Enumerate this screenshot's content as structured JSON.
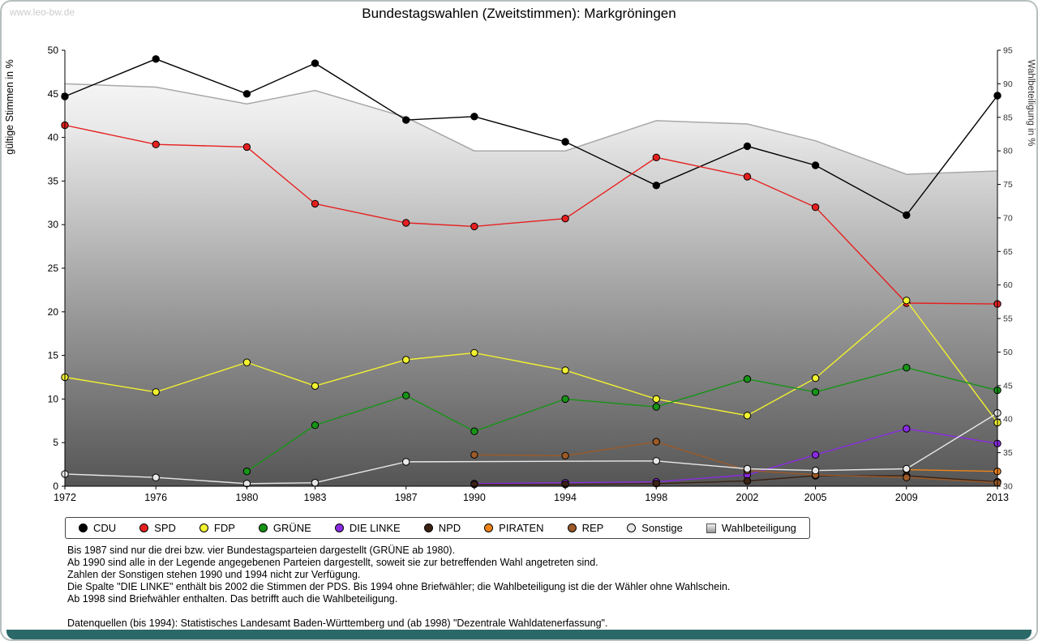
{
  "page": {
    "watermark": "www.leo-bw.de",
    "title": "Bundestagswahlen (Zweitstimmen): Markgröningen"
  },
  "chart_data": {
    "type": "line",
    "title": "Bundestagswahlen (Zweitstimmen): Markgröningen",
    "legend_position": "bottom",
    "grid": false,
    "x": [
      1972,
      1976,
      1980,
      1983,
      1987,
      1990,
      1994,
      1998,
      2002,
      2005,
      2009,
      2013
    ],
    "left_axis": {
      "label": "gültige Stimmen in %",
      "min": 0,
      "max": 50,
      "tick_step": 5
    },
    "right_axis": {
      "label": "Wahlbeteiligung in %",
      "min": 30,
      "max": 95,
      "tick_step": 5
    },
    "series": [
      {
        "name": "CDU",
        "color": "#000000",
        "axis": "left",
        "values": [
          44.7,
          49.0,
          45.0,
          48.5,
          42.0,
          42.4,
          39.5,
          34.5,
          39.0,
          36.8,
          31.1,
          44.8
        ]
      },
      {
        "name": "SPD",
        "color": "#e62020",
        "axis": "left",
        "values": [
          41.4,
          39.2,
          38.9,
          32.4,
          30.2,
          29.8,
          30.7,
          37.7,
          35.5,
          32.0,
          21.0,
          20.9
        ]
      },
      {
        "name": "FDP",
        "color": "#f2f230",
        "axis": "left",
        "values": [
          12.5,
          10.8,
          14.2,
          11.5,
          14.5,
          15.3,
          13.3,
          10.0,
          8.1,
          12.4,
          21.3,
          7.3
        ]
      },
      {
        "name": "GRÜNE",
        "color": "#169416",
        "axis": "left",
        "values": [
          null,
          null,
          1.7,
          7.0,
          10.4,
          6.3,
          10.0,
          9.1,
          12.3,
          10.8,
          13.6,
          11.0
        ]
      },
      {
        "name": "DIE LINKE",
        "color": "#8a2be2",
        "axis": "left",
        "values": [
          null,
          null,
          null,
          null,
          null,
          0.3,
          0.4,
          0.5,
          1.3,
          3.6,
          6.6,
          4.9
        ]
      },
      {
        "name": "NPD",
        "color": "#3b2314",
        "axis": "left",
        "values": [
          null,
          null,
          null,
          null,
          null,
          0.2,
          0.2,
          0.3,
          0.6,
          1.2,
          1.2,
          0.5
        ]
      },
      {
        "name": "PIRATEN",
        "color": "#f08418",
        "axis": "left",
        "values": [
          null,
          null,
          null,
          null,
          null,
          null,
          null,
          null,
          null,
          null,
          1.9,
          1.7
        ]
      },
      {
        "name": "REP",
        "color": "#9c5a28",
        "axis": "left",
        "values": [
          null,
          null,
          null,
          null,
          null,
          3.6,
          3.5,
          5.1,
          1.8,
          1.3,
          1.0,
          0.4
        ]
      },
      {
        "name": "Sonstige",
        "color": "#e8e8e8",
        "axis": "left",
        "values": [
          1.4,
          1.0,
          0.3,
          0.4,
          2.8,
          null,
          null,
          2.9,
          2.0,
          1.8,
          2.0,
          8.4
        ]
      },
      {
        "name": "Wahlbeteiligung",
        "color": "#b0b0b0",
        "axis": "right",
        "type": "area",
        "values": [
          90.0,
          89.5,
          87.0,
          89.0,
          85.0,
          80.0,
          80.0,
          84.5,
          84.0,
          81.5,
          76.5,
          77.0
        ]
      }
    ]
  },
  "footnotes": [
    "Bis 1987 sind nur die drei bzw. vier Bundestagsparteien dargestellt (GRÜNE ab 1980).",
    "Ab 1990 sind alle in der Legende angegebenen Parteien dargestellt, soweit sie zur betreffenden Wahl angetreten sind.",
    "Zahlen der Sonstigen stehen 1990 und 1994 nicht zur Verfügung.",
    "Die Spalte \"DIE LINKE\" enthält bis 2002 die Stimmen der PDS. Bis 1994 ohne Briefwähler; die Wahlbeteiligung ist die der Wähler ohne Wahlschein.",
    "Ab 1998 sind Briefwähler enthalten. Das betrifft auch die Wahlbeteiligung.",
    "",
    "Datenquellen (bis 1994): Statistisches Landesamt Baden-Württemberg und (ab 1998) \"Dezentrale Wahldatenerfassung\"."
  ]
}
